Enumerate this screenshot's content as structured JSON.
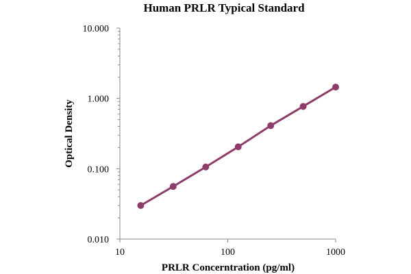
{
  "chart_data": {
    "type": "scatter",
    "title": "Human PRLR Typical Standard",
    "xlabel": "PRLR Concerntration (pg/ml)",
    "ylabel": "Optical Density",
    "x_scale": "log",
    "y_scale": "log",
    "xlim": [
      10,
      1000
    ],
    "ylim": [
      0.01,
      10
    ],
    "x_ticks": [
      {
        "value": 10,
        "label": "10"
      },
      {
        "value": 100,
        "label": "100"
      },
      {
        "value": 1000,
        "label": "1000"
      }
    ],
    "y_ticks": [
      {
        "value": 0.01,
        "label": "0.010"
      },
      {
        "value": 0.1,
        "label": "0.100"
      },
      {
        "value": 1,
        "label": "1.000"
      },
      {
        "value": 10,
        "label": "10.000"
      }
    ],
    "grid": false,
    "legend": "none",
    "series": [
      {
        "color": "#8e3d6a",
        "x": [
          15.6,
          31.2,
          62.5,
          125,
          250,
          500,
          1000
        ],
        "y": [
          0.03,
          0.056,
          0.106,
          0.205,
          0.41,
          0.77,
          1.45
        ],
        "trendline": true
      }
    ]
  }
}
